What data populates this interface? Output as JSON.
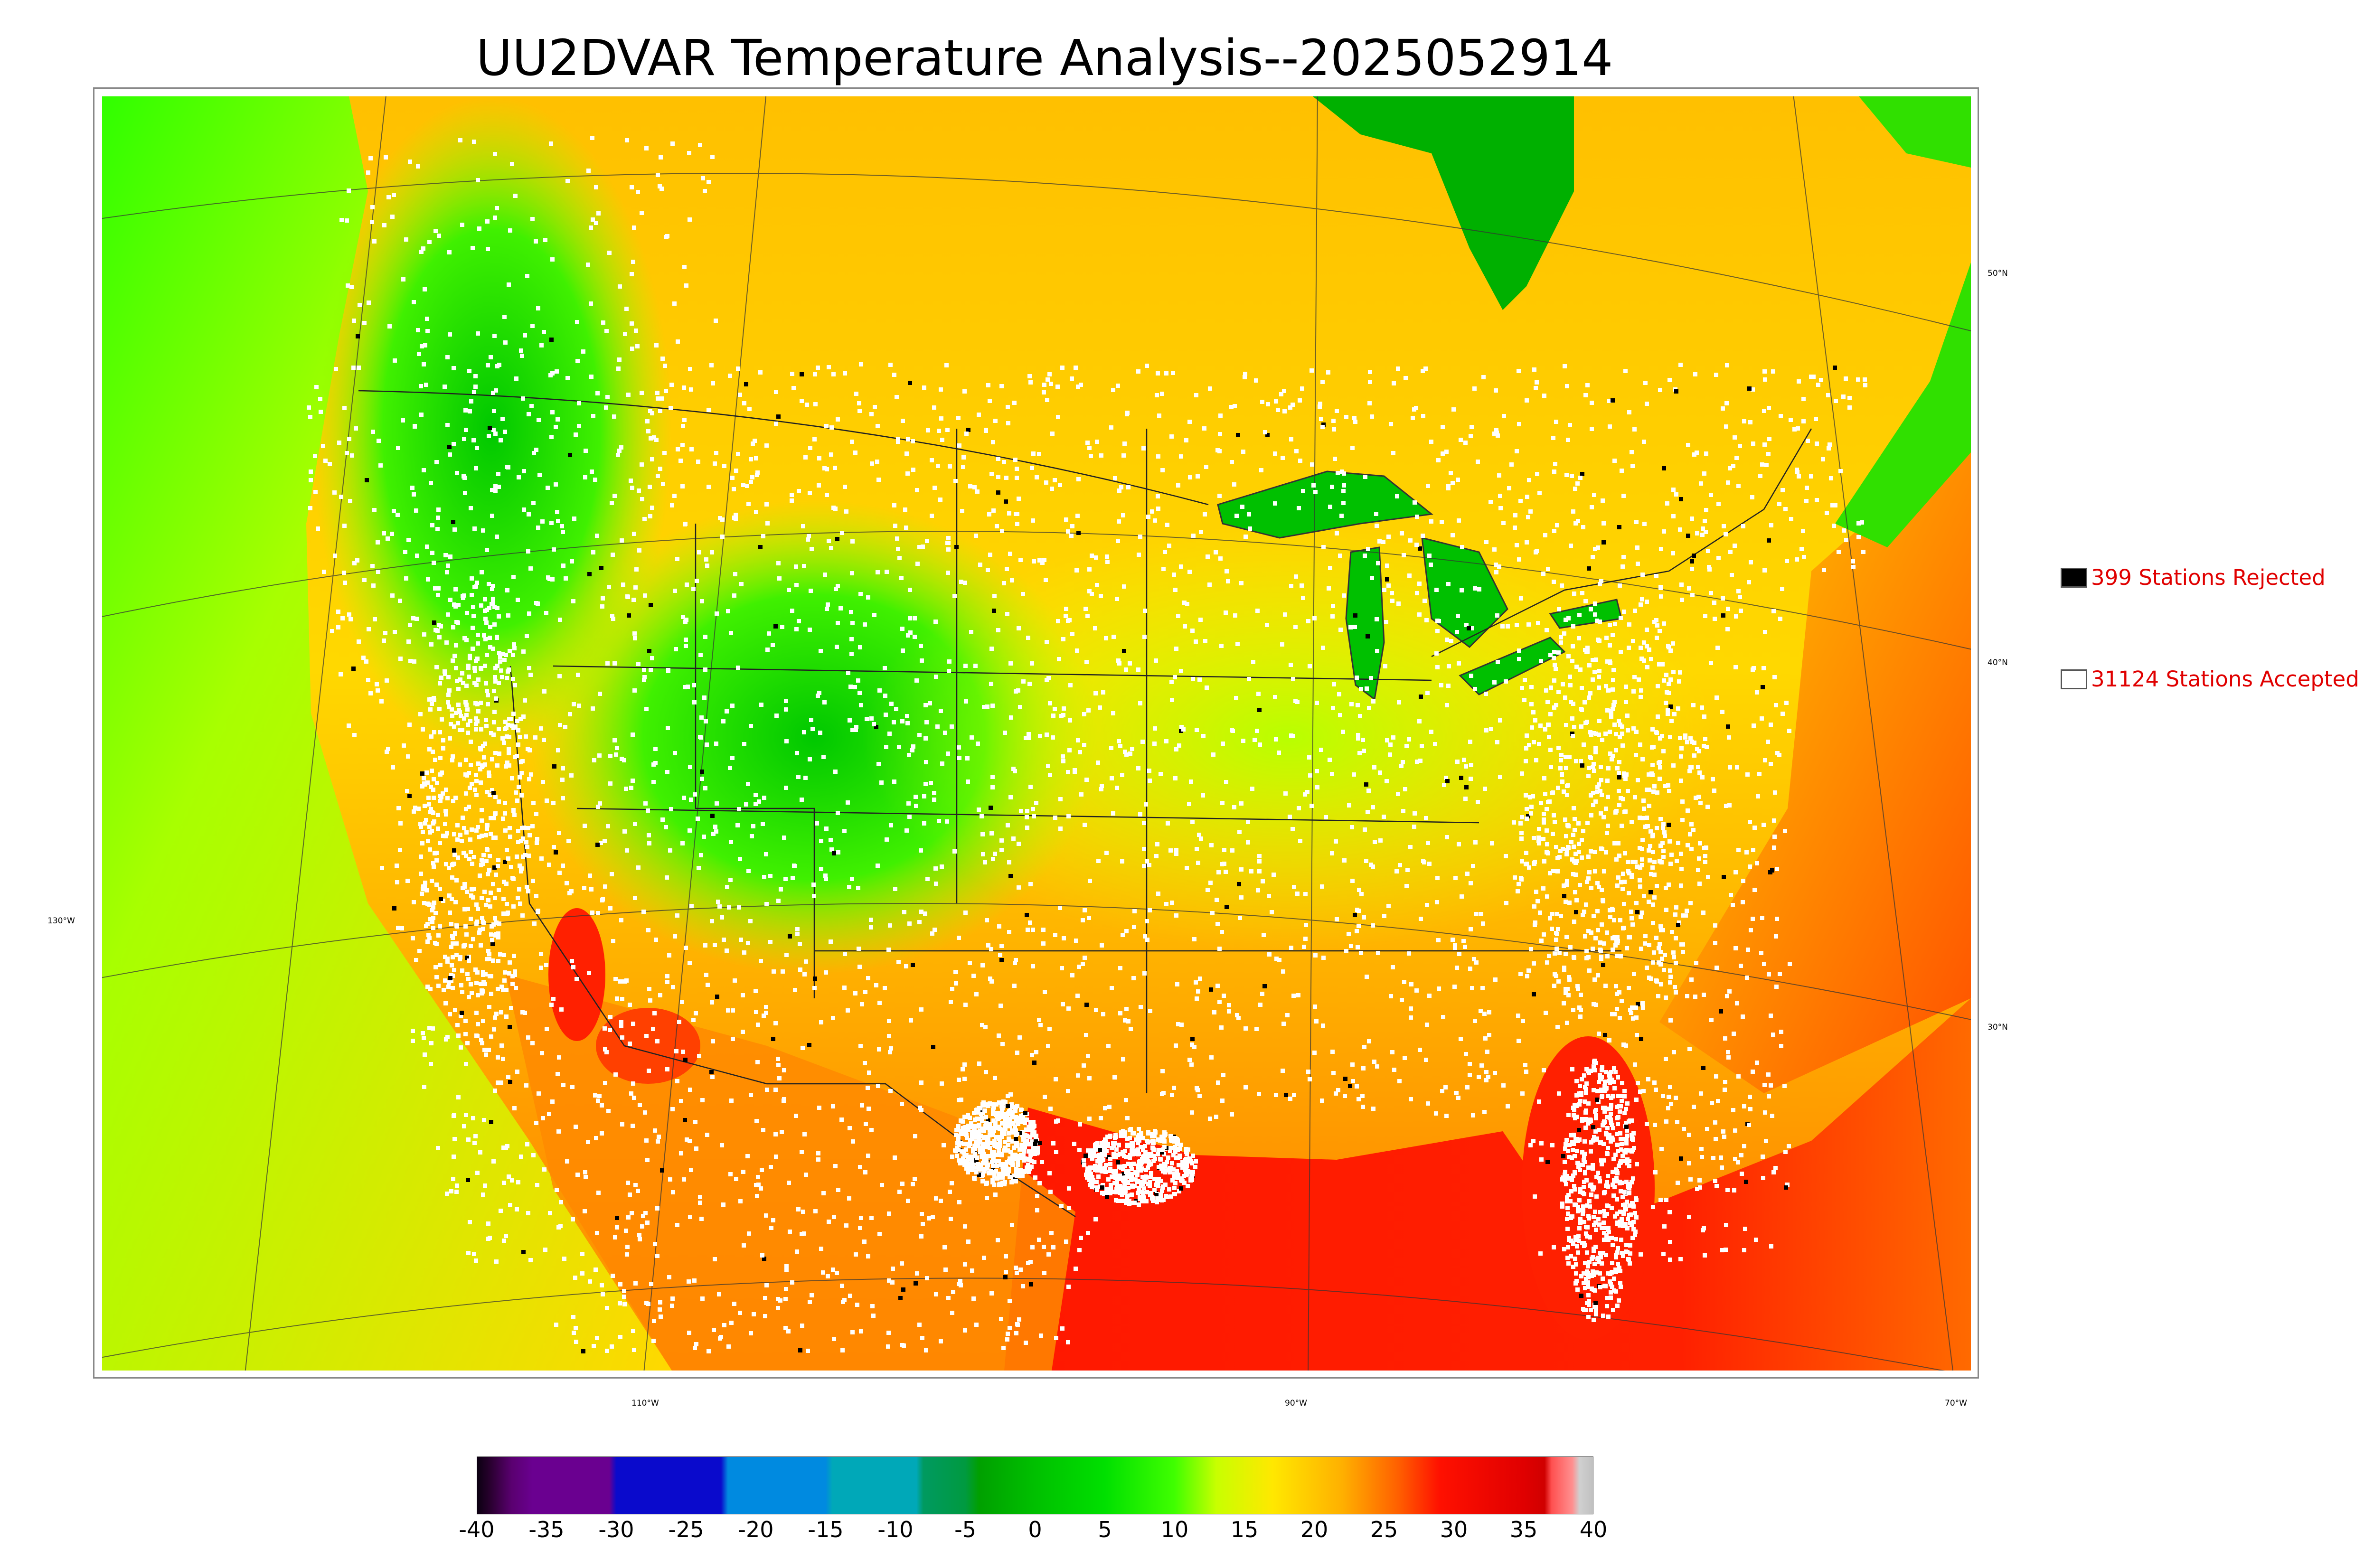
{
  "title": "UU2DVAR Temperature Analysis--2025052914",
  "lat_labels": [
    "50°N",
    "40°N",
    "30°N"
  ],
  "lon_labels": [
    "130°W",
    "110°W",
    "90°W",
    "70°W"
  ],
  "legend": {
    "rejected": {
      "label": "399 Stations Rejected",
      "color": "#000000"
    },
    "accepted": {
      "label": "31124 Stations Accepted",
      "color": "#ffffff"
    }
  },
  "colorbar": {
    "ticks": [
      "-40",
      "-35",
      "-30",
      "-25",
      "-20",
      "-15",
      "-10",
      "-5",
      "0",
      "5",
      "10",
      "15",
      "20",
      "25",
      "30",
      "35",
      "40"
    ],
    "range": [
      -40,
      40
    ],
    "stops": [
      {
        "v": -40,
        "color": "#0a0010"
      },
      {
        "v": -39,
        "color": "#2a0030"
      },
      {
        "v": -37.5,
        "color": "#5a0070"
      },
      {
        "v": -36,
        "color": "#6a0090"
      },
      {
        "v": -30.5,
        "color": "#6a0090"
      },
      {
        "v": -30,
        "color": "#0a0acc"
      },
      {
        "v": -22.5,
        "color": "#0a0acc"
      },
      {
        "v": -22,
        "color": "#008ae0"
      },
      {
        "v": -15,
        "color": "#008ae0"
      },
      {
        "v": -14.5,
        "color": "#00a8b8"
      },
      {
        "v": -8.5,
        "color": "#00a8b8"
      },
      {
        "v": -8,
        "color": "#009a60"
      },
      {
        "v": -5,
        "color": "#009a40"
      },
      {
        "v": -4,
        "color": "#00a000"
      },
      {
        "v": 0,
        "color": "#00c000"
      },
      {
        "v": 5,
        "color": "#00e000"
      },
      {
        "v": 10,
        "color": "#40ff00"
      },
      {
        "v": 13,
        "color": "#c8ff00"
      },
      {
        "v": 17,
        "color": "#ffe800"
      },
      {
        "v": 22,
        "color": "#ffb000"
      },
      {
        "v": 26,
        "color": "#ff6000"
      },
      {
        "v": 29,
        "color": "#ff1000"
      },
      {
        "v": 35,
        "color": "#e00000"
      },
      {
        "v": 36.5,
        "color": "#d00000"
      },
      {
        "v": 37,
        "color": "#ff5050"
      },
      {
        "v": 38.5,
        "color": "#ff9090"
      },
      {
        "v": 39,
        "color": "#d0d0d0"
      },
      {
        "v": 40,
        "color": "#c0c0c0"
      }
    ]
  },
  "map_colors": {
    "ocean_west": "#d8f000",
    "ocean_gulf": "#ff1000",
    "canada_north": "#ffb400",
    "great_lakes": "#00c000",
    "hudson_bay": "#00b000",
    "rockies": "#00d800",
    "south": "#ff6a00",
    "station_accepted": "#ffffff",
    "station_rejected": "#000000"
  }
}
